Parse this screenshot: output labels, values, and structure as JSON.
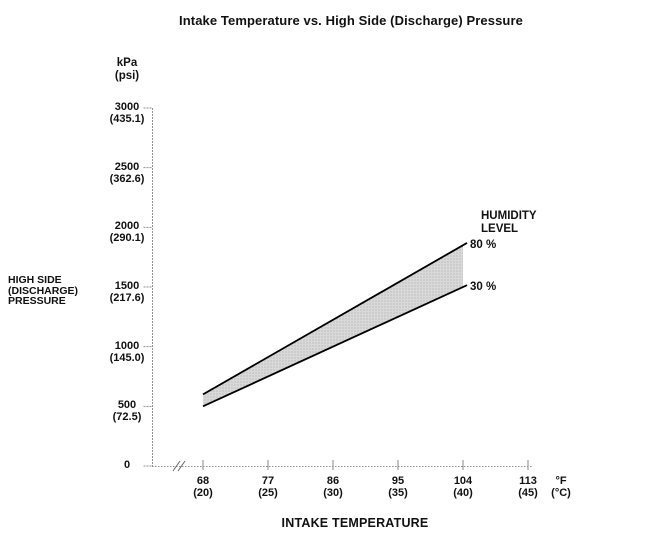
{
  "chart_data": {
    "type": "area",
    "title": "Intake Temperature vs. High Side (Discharge) Pressure",
    "xlabel": "INTAKE TEMPERATURE",
    "ylabel": "HIGH SIDE (DISCHARGE) PRESSURE",
    "ylabel_lines": [
      "HIGH SIDE",
      "(DISCHARGE)",
      "PRESSURE"
    ],
    "y_axis_units": [
      "kPa",
      "(psi)"
    ],
    "x_axis_units": [
      "°F",
      "(°C)"
    ],
    "grid": false,
    "axis_break_x": true,
    "xlim_f": [
      68,
      113
    ],
    "ylim_kpa": [
      0,
      3000
    ],
    "x_ticks": [
      {
        "value": 68,
        "label": "68",
        "sub": "(20)"
      },
      {
        "value": 77,
        "label": "77",
        "sub": "(25)"
      },
      {
        "value": 86,
        "label": "86",
        "sub": "(30)"
      },
      {
        "value": 95,
        "label": "95",
        "sub": "(35)"
      },
      {
        "value": 104,
        "label": "104",
        "sub": "(40)"
      },
      {
        "value": 113,
        "label": "113",
        "sub": "(45)"
      }
    ],
    "y_ticks": [
      {
        "value": 3000,
        "label": "3000",
        "sub": "(435.1)"
      },
      {
        "value": 2500,
        "label": "2500",
        "sub": "(362.6)"
      },
      {
        "value": 2000,
        "label": "2000",
        "sub": "(290.1)"
      },
      {
        "value": 1500,
        "label": "1500",
        "sub": "(217.6)"
      },
      {
        "value": 1000,
        "label": "1000",
        "sub": "(145.0)"
      },
      {
        "value": 500,
        "label": "500",
        "sub": "(72.5)"
      },
      {
        "value": 0,
        "label": "0",
        "sub": ""
      }
    ],
    "legend_title_lines": [
      "HUMIDITY",
      "LEVEL"
    ],
    "legend_position": "right",
    "band_fill": "#d9d9d9",
    "band_dot_color": "#b0b0b0",
    "line_color": "#000000",
    "axis_color": "#909090",
    "series": [
      {
        "name": "80 %",
        "x_f": [
          68,
          104
        ],
        "y_kpa": [
          600,
          1850
        ]
      },
      {
        "name": "30 %",
        "x_f": [
          68,
          104
        ],
        "y_kpa": [
          500,
          1500
        ]
      }
    ]
  }
}
